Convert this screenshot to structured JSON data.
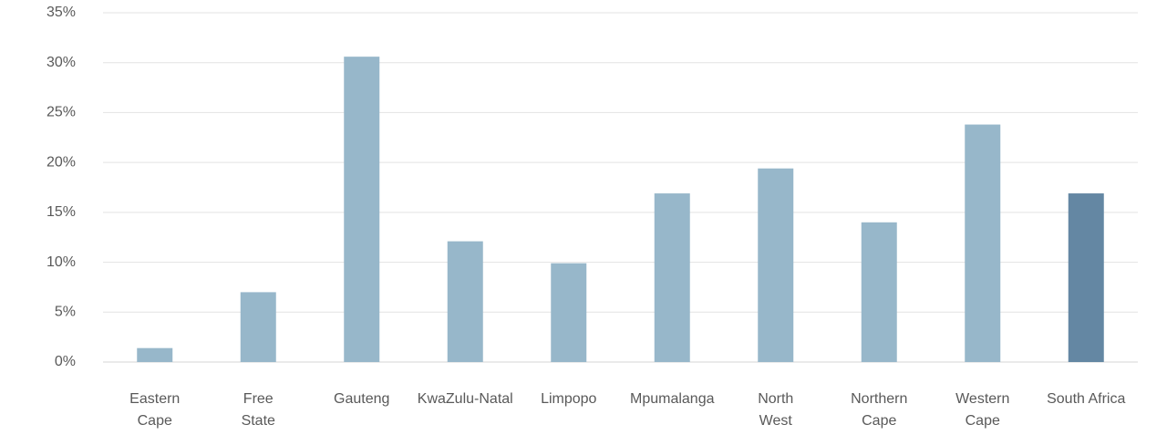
{
  "chart_data": {
    "type": "bar",
    "title": "",
    "xlabel": "",
    "ylabel": "",
    "categories": [
      "Eastern Cape",
      "Free State",
      "Gauteng",
      "KwaZulu-Natal",
      "Limpopo",
      "Mpumalanga",
      "North West",
      "Northern Cape",
      "Western Cape",
      "South Africa"
    ],
    "values": [
      1.4,
      7.0,
      30.6,
      12.1,
      9.9,
      16.9,
      19.4,
      14.0,
      23.8,
      16.9
    ],
    "ylim": [
      0,
      35
    ],
    "yticks": [
      0,
      5,
      10,
      15,
      20,
      25,
      30,
      35
    ],
    "ytick_labels": [
      "0%",
      "5%",
      "10%",
      "15%",
      "20%",
      "25%",
      "30%",
      "35%"
    ],
    "grid": true,
    "legend": "none",
    "colors": {
      "bar": "#97b7ca",
      "highlight": "#6487a3",
      "highlight_category": "South Africa",
      "grid": "#e3e3e3",
      "text": "#595959"
    }
  }
}
